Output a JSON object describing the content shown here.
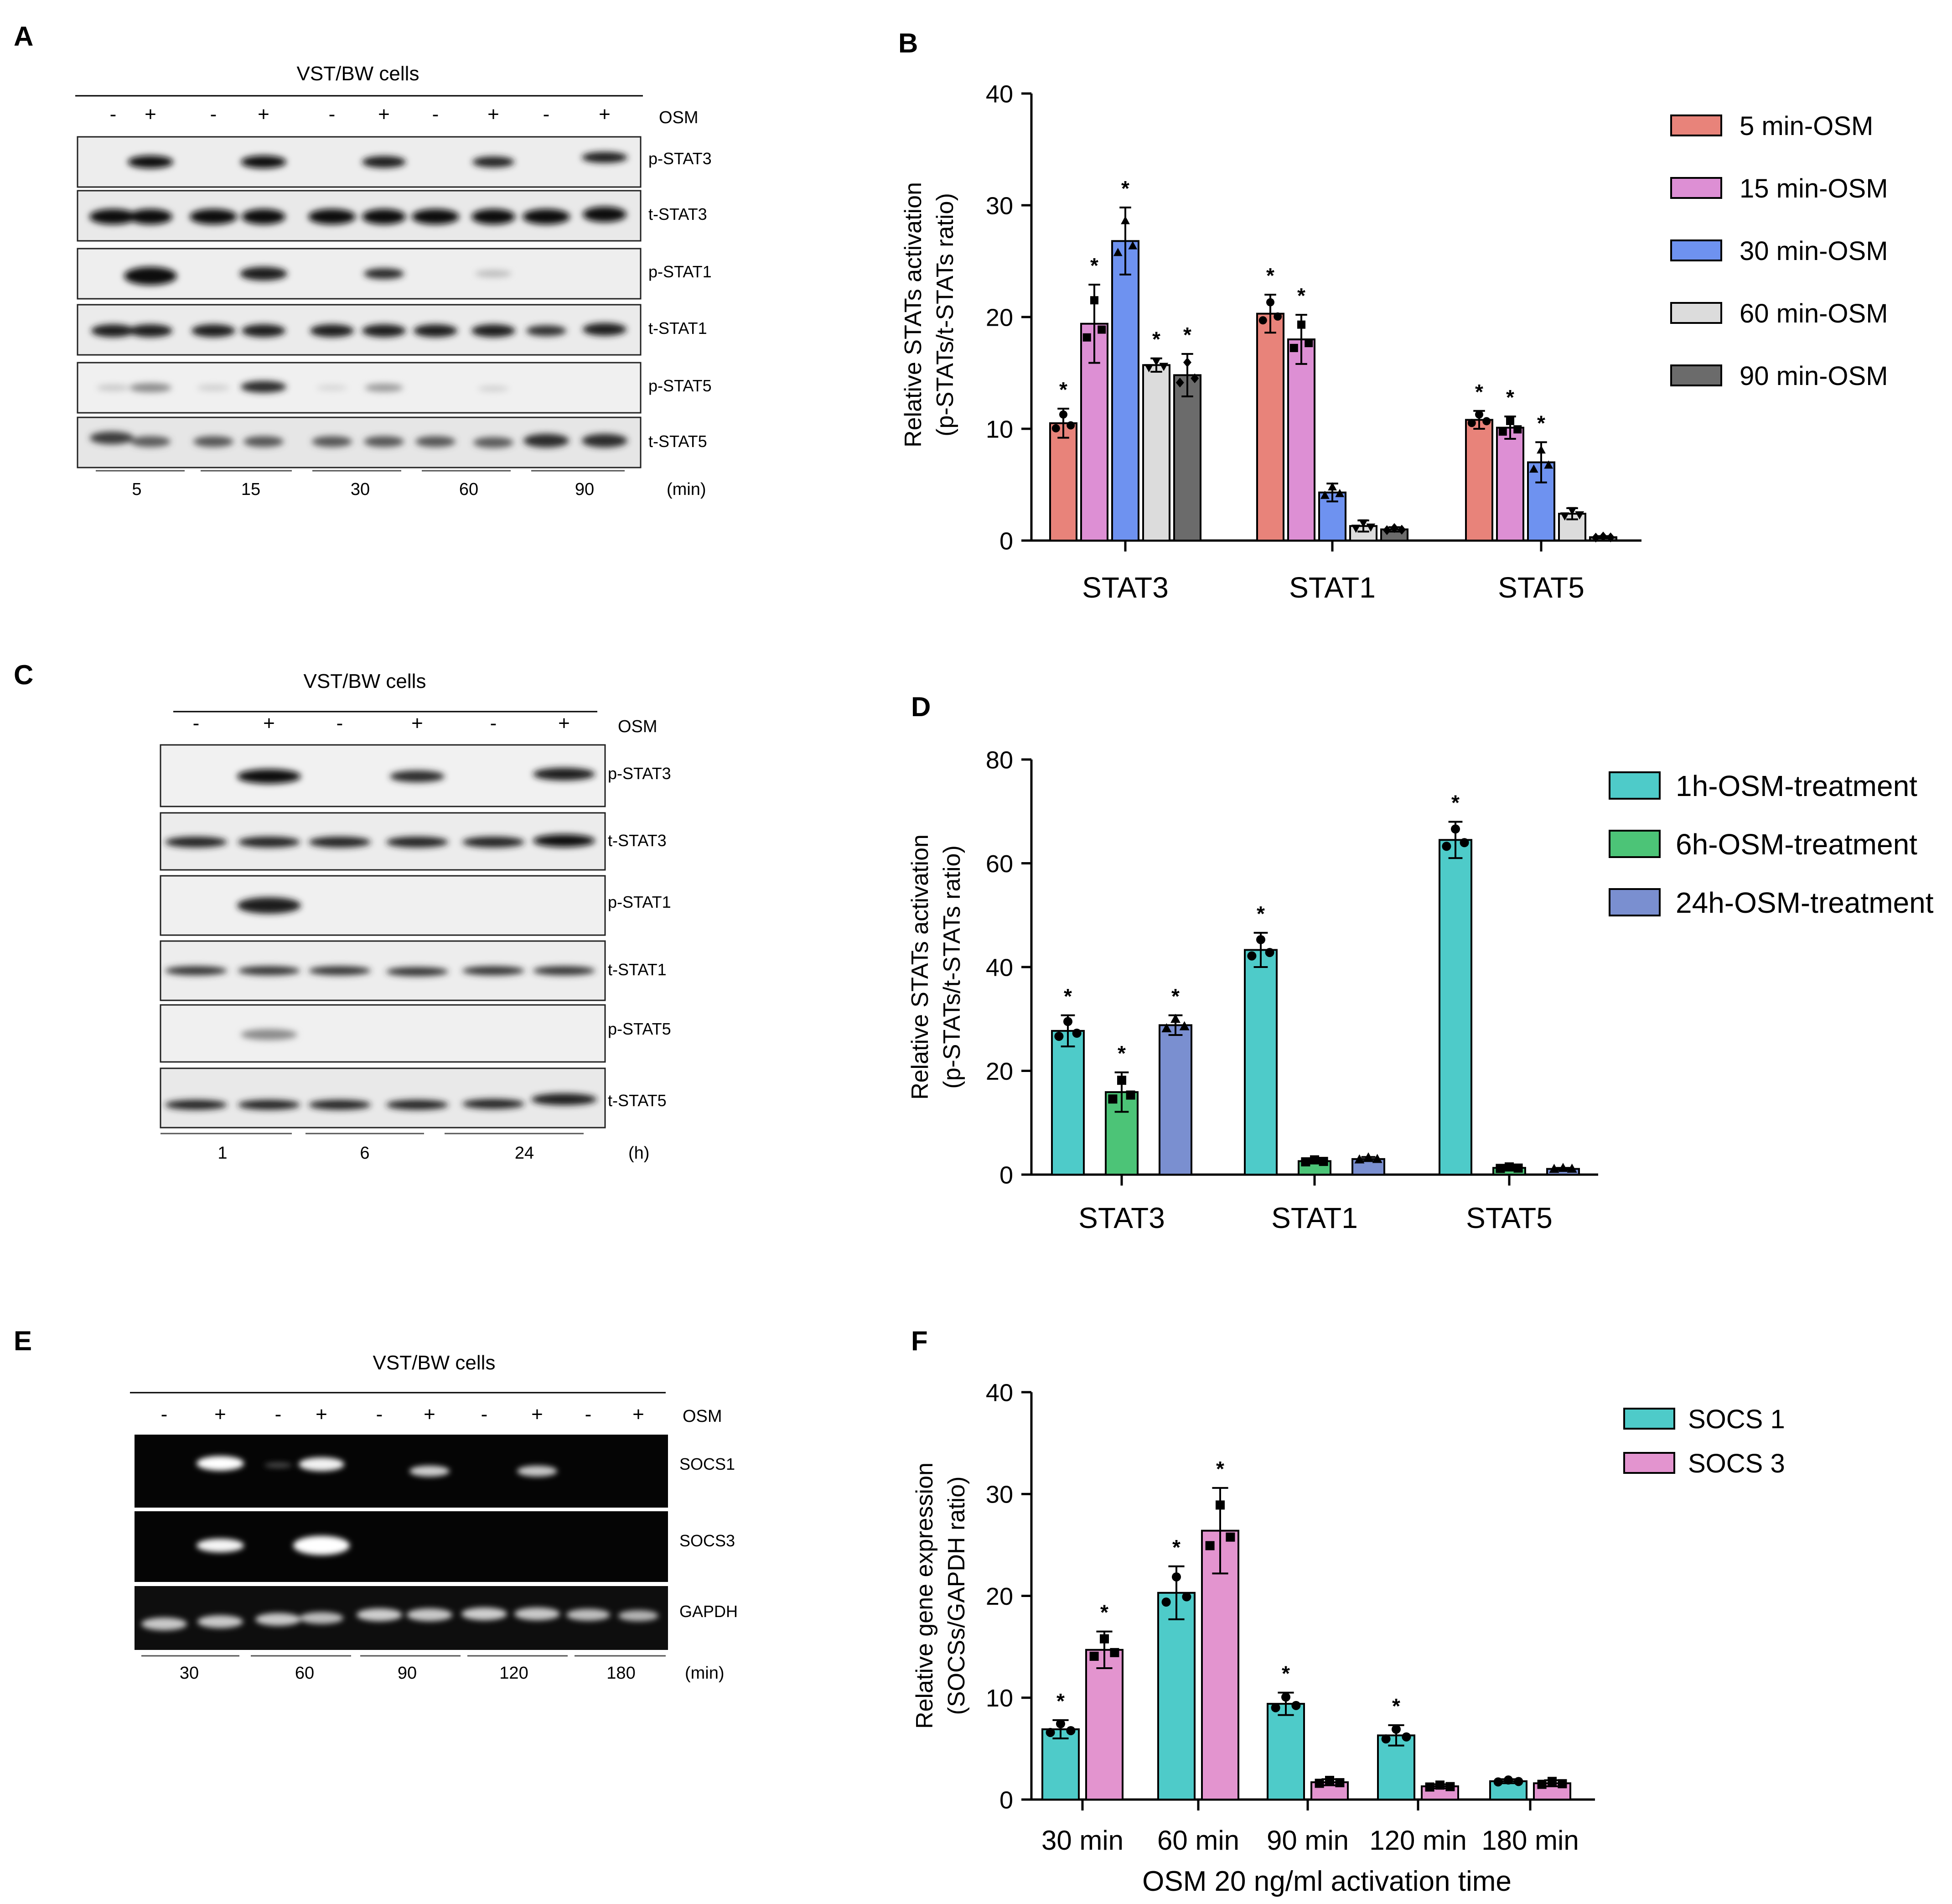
{
  "panels": {
    "A": {
      "letter": "A",
      "title": "VST/BW cells",
      "treat_label": "OSM",
      "signs": [
        "-",
        "+",
        "-",
        "+",
        "-",
        "+",
        "-",
        "+",
        "-",
        "+"
      ],
      "rows": [
        "p-STAT3",
        "t-STAT3",
        "p-STAT1",
        "t-STAT1",
        "p-STAT5",
        "t-STAT5"
      ],
      "groups": [
        "5",
        "15",
        "30",
        "60",
        "90"
      ],
      "unit": "(min)"
    },
    "C": {
      "letter": "C",
      "title": "VST/BW cells",
      "treat_label": "OSM",
      "signs": [
        "-",
        "+",
        "-",
        "+",
        "-",
        "+"
      ],
      "rows": [
        "p-STAT3",
        "t-STAT3",
        "p-STAT1",
        "t-STAT1",
        "p-STAT5",
        "t-STAT5"
      ],
      "groups": [
        "1",
        "6",
        "24"
      ],
      "unit": "(h)"
    },
    "E": {
      "letter": "E",
      "title": "VST/BW cells",
      "treat_label": "OSM",
      "signs": [
        "-",
        "+",
        "-",
        "+",
        "-",
        "+",
        "-",
        "+",
        "-",
        "+"
      ],
      "rows": [
        "SOCS1",
        "SOCS3",
        "GAPDH"
      ],
      "groups": [
        "30",
        "60",
        "90",
        "120",
        "180"
      ],
      "unit": "(min)"
    },
    "B": {
      "letter": "B"
    },
    "D": {
      "letter": "D"
    },
    "F": {
      "letter": "F"
    }
  },
  "chart_data": [
    {
      "panel": "B",
      "type": "bar",
      "title": "",
      "ylabel_line1": "Relative STATs activation",
      "ylabel_line2": "(p-STATs/t-STATs ratio)",
      "xlabel": "",
      "ylim": [
        0,
        40
      ],
      "yticks": [
        "0",
        "10",
        "20",
        "30",
        "40"
      ],
      "categories": [
        "STAT3",
        "STAT1",
        "STAT5"
      ],
      "legend_position": "top-right",
      "significance_marker": "*",
      "series": [
        {
          "name": "5 min-OSM",
          "color": "#e8837a",
          "marker": "circle",
          "values": [
            10.5,
            20.3,
            10.8
          ],
          "errors": [
            1.3,
            1.7,
            0.8
          ],
          "significant": [
            true,
            true,
            true
          ]
        },
        {
          "name": "15 min-OSM",
          "color": "#dd8fd4",
          "marker": "square",
          "values": [
            19.4,
            18.0,
            10.1
          ],
          "errors": [
            3.5,
            2.2,
            1.0
          ],
          "significant": [
            true,
            true,
            true
          ]
        },
        {
          "name": "30 min-OSM",
          "color": "#6e92f0",
          "marker": "triangle",
          "values": [
            26.8,
            4.3,
            7.0
          ],
          "errors": [
            3.0,
            0.8,
            1.8
          ],
          "significant": [
            true,
            false,
            true
          ]
        },
        {
          "name": "60 min-OSM",
          "color": "#dcdcdc",
          "marker": "tri-down",
          "values": [
            15.7,
            1.3,
            2.4
          ],
          "errors": [
            0.6,
            0.5,
            0.5
          ],
          "significant": [
            true,
            false,
            false
          ]
        },
        {
          "name": "90 min-OSM",
          "color": "#6b6b6b",
          "marker": "diamond",
          "values": [
            14.8,
            1.0,
            0.3
          ],
          "errors": [
            1.9,
            0.2,
            0.1
          ],
          "significant": [
            true,
            false,
            false
          ]
        }
      ]
    },
    {
      "panel": "D",
      "type": "bar",
      "title": "",
      "ylabel_line1": "Relative STATs activation",
      "ylabel_line2": "(p-STATs/t-STATs ratio)",
      "xlabel": "",
      "ylim": [
        0,
        80
      ],
      "yticks": [
        "0",
        "20",
        "40",
        "60",
        "80"
      ],
      "categories": [
        "STAT3",
        "STAT1",
        "STAT5"
      ],
      "legend_position": "top-right",
      "significance_marker": "*",
      "series": [
        {
          "name": "1h-OSM-treatment",
          "color": "#4ecbc9",
          "marker": "circle",
          "values": [
            27.7,
            43.3,
            64.5
          ],
          "errors": [
            3.0,
            3.3,
            3.5
          ],
          "significant": [
            true,
            true,
            true
          ]
        },
        {
          "name": "6h-OSM-treatment",
          "color": "#4cc477",
          "marker": "square",
          "values": [
            15.9,
            2.6,
            1.3
          ],
          "errors": [
            3.8,
            0.4,
            0.3
          ],
          "significant": [
            true,
            false,
            false
          ]
        },
        {
          "name": "24h-OSM-treatment",
          "color": "#7a8fd0",
          "marker": "triangle",
          "values": [
            28.8,
            3.0,
            1.1
          ],
          "errors": [
            1.9,
            0.4,
            0.2
          ],
          "significant": [
            true,
            false,
            false
          ]
        }
      ]
    },
    {
      "panel": "F",
      "type": "bar",
      "title": "",
      "ylabel_line1": "Relative gene expression",
      "ylabel_line2": "(SOCSs/GAPDH ratio)",
      "xlabel": "OSM 20 ng/ml activation time",
      "ylim": [
        0,
        40
      ],
      "yticks": [
        "0",
        "10",
        "20",
        "30",
        "40"
      ],
      "categories": [
        "30 min",
        "60 min",
        "90 min",
        "120 min",
        "180 min"
      ],
      "legend_position": "top-right",
      "significance_marker": "*",
      "series": [
        {
          "name": "SOCS 1",
          "color": "#4ecbc9",
          "marker": "circle",
          "values": [
            6.9,
            20.3,
            9.4,
            6.3,
            1.8
          ],
          "errors": [
            0.9,
            2.6,
            1.1,
            1.0,
            0.2
          ],
          "significant": [
            true,
            true,
            true,
            true,
            false
          ]
        },
        {
          "name": "SOCS 3",
          "color": "#e394cf",
          "marker": "square",
          "values": [
            14.7,
            26.4,
            1.7,
            1.3,
            1.6
          ],
          "errors": [
            1.8,
            4.2,
            0.3,
            0.2,
            0.3
          ],
          "significant": [
            true,
            true,
            false,
            false,
            false
          ]
        }
      ]
    }
  ]
}
